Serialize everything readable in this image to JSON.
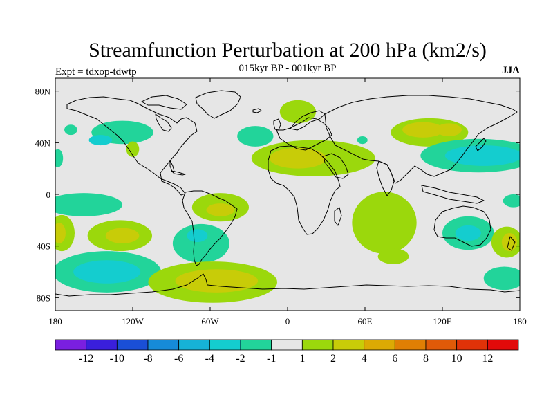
{
  "chart_data": {
    "type": "heatmap",
    "title": "Streamfunction Perturbation at 200 hPa (km2/s)",
    "subtitle": "015kyr BP - 001kyr BP",
    "left_label": "Expt = tdxop-tdwtp",
    "right_label": "JJA",
    "x_ticks": [
      {
        "lon": -180,
        "label": "180"
      },
      {
        "lon": -120,
        "label": "120W"
      },
      {
        "lon": -60,
        "label": "60W"
      },
      {
        "lon": 0,
        "label": "0"
      },
      {
        "lon": 60,
        "label": "60E"
      },
      {
        "lon": 120,
        "label": "120E"
      },
      {
        "lon": 180,
        "label": "180"
      }
    ],
    "y_ticks": [
      {
        "lat": 80,
        "label": "80N"
      },
      {
        "lat": 40,
        "label": "40N"
      },
      {
        "lat": 0,
        "label": "0"
      },
      {
        "lat": -40,
        "label": "40S"
      },
      {
        "lat": -80,
        "label": "80S"
      }
    ],
    "xlim": [
      -180,
      180
    ],
    "ylim": [
      -90,
      90
    ],
    "colorbar": {
      "colors": [
        "#7a1fe0",
        "#3a1fdc",
        "#1a4fd6",
        "#168bd8",
        "#16b2d6",
        "#14cdcf",
        "#22d49a",
        "#e6e6e6",
        "#9bd80c",
        "#c8cc08",
        "#dcaa04",
        "#e07f04",
        "#e05a08",
        "#e03208",
        "#e20a0a"
      ],
      "labels": [
        "-12",
        "-10",
        "-8",
        "-6",
        "-4",
        "-2",
        "-1",
        "1",
        "2",
        "4",
        "6",
        "8",
        "10",
        "12"
      ]
    },
    "anomalies": [
      {
        "lon": -128,
        "lat": 48,
        "rx": 24,
        "ry": 9,
        "level": -1
      },
      {
        "lon": -145,
        "lat": 42,
        "rx": 9,
        "ry": 4,
        "level": -2
      },
      {
        "lon": -120,
        "lat": 35,
        "rx": 5,
        "ry": 6,
        "level": 1
      },
      {
        "lon": -168,
        "lat": 50,
        "rx": 5,
        "ry": 4,
        "level": -1
      },
      {
        "lon": -178,
        "lat": 28,
        "rx": 4,
        "ry": 7,
        "level": -1
      },
      {
        "lon": -25,
        "lat": 45,
        "rx": 14,
        "ry": 8,
        "level": -1
      },
      {
        "lon": 8,
        "lat": 64,
        "rx": 14,
        "ry": 9,
        "level": 1
      },
      {
        "lon": 20,
        "lat": 28,
        "rx": 48,
        "ry": 14,
        "level": 1
      },
      {
        "lon": 8,
        "lat": 28,
        "rx": 22,
        "ry": 8,
        "level": 2
      },
      {
        "lon": 58,
        "lat": 42,
        "rx": 4,
        "ry": 3,
        "level": -1
      },
      {
        "lon": 110,
        "lat": 48,
        "rx": 30,
        "ry": 11,
        "level": 1
      },
      {
        "lon": 105,
        "lat": 50,
        "rx": 16,
        "ry": 6,
        "level": 2
      },
      {
        "lon": 125,
        "lat": 50,
        "rx": 10,
        "ry": 5,
        "level": 2
      },
      {
        "lon": 148,
        "lat": 30,
        "rx": 45,
        "ry": 13,
        "level": -1
      },
      {
        "lon": 152,
        "lat": 30,
        "rx": 30,
        "ry": 8,
        "level": -2
      },
      {
        "lon": -158,
        "lat": -8,
        "rx": 30,
        "ry": 9,
        "level": -1
      },
      {
        "lon": -52,
        "lat": -10,
        "rx": 22,
        "ry": 11,
        "level": 1
      },
      {
        "lon": -52,
        "lat": -12,
        "rx": 11,
        "ry": 5,
        "level": 2
      },
      {
        "lon": -175,
        "lat": -30,
        "rx": 10,
        "ry": 14,
        "level": 1
      },
      {
        "lon": -177,
        "lat": -30,
        "rx": 5,
        "ry": 8,
        "level": 2
      },
      {
        "lon": -130,
        "lat": -32,
        "rx": 25,
        "ry": 12,
        "level": 1
      },
      {
        "lon": -128,
        "lat": -32,
        "rx": 13,
        "ry": 6,
        "level": 2
      },
      {
        "lon": -67,
        "lat": -38,
        "rx": 22,
        "ry": 15,
        "level": -1
      },
      {
        "lon": -70,
        "lat": -32,
        "rx": 8,
        "ry": 5,
        "level": -2
      },
      {
        "lon": -140,
        "lat": -60,
        "rx": 42,
        "ry": 16,
        "level": -1
      },
      {
        "lon": -140,
        "lat": -60,
        "rx": 26,
        "ry": 9,
        "level": -2
      },
      {
        "lon": 75,
        "lat": -22,
        "rx": 25,
        "ry": 24,
        "level": 1
      },
      {
        "lon": 82,
        "lat": -48,
        "rx": 12,
        "ry": 6,
        "level": 1
      },
      {
        "lon": 140,
        "lat": -30,
        "rx": 20,
        "ry": 13,
        "level": -1
      },
      {
        "lon": 140,
        "lat": -30,
        "rx": 10,
        "ry": 6,
        "level": -2
      },
      {
        "lon": 170,
        "lat": -37,
        "rx": 12,
        "ry": 12,
        "level": 1
      },
      {
        "lon": 172,
        "lat": -37,
        "rx": 6,
        "ry": 7,
        "level": 2
      },
      {
        "lon": 175,
        "lat": -5,
        "rx": 8,
        "ry": 5,
        "level": -1
      },
      {
        "lon": 168,
        "lat": -65,
        "rx": 16,
        "ry": 9,
        "level": -1
      },
      {
        "lon": -58,
        "lat": -68,
        "rx": 50,
        "ry": 16,
        "level": 1
      },
      {
        "lon": -55,
        "lat": -67,
        "rx": 32,
        "ry": 9,
        "level": 2
      }
    ]
  }
}
